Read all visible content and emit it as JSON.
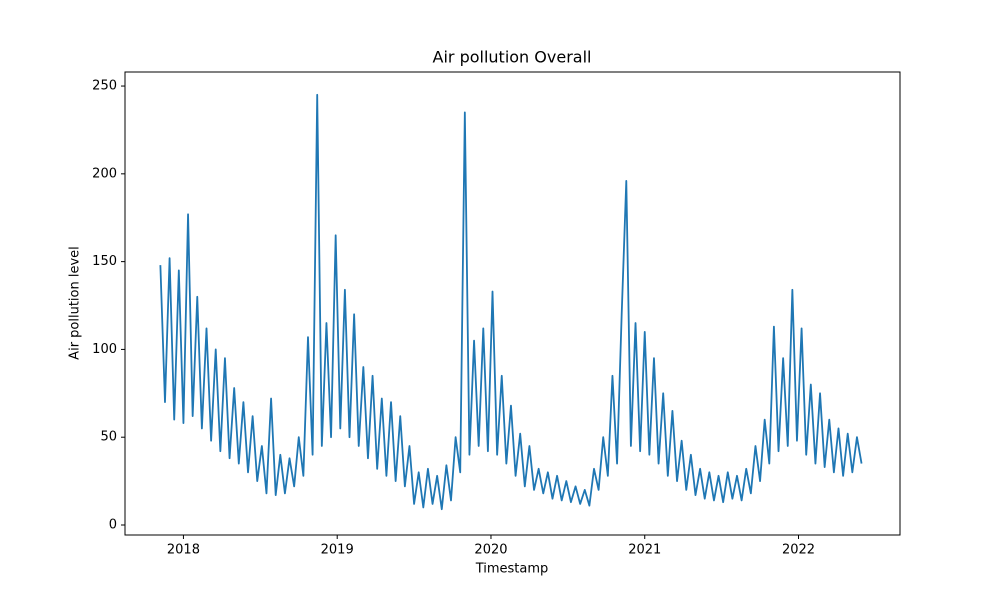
{
  "chart_data": {
    "type": "line",
    "title": "Air pollution Overall",
    "xlabel": "Timestamp",
    "ylabel": "Air pollution level",
    "xlim": [
      2017.62,
      2022.66
    ],
    "xticks": [
      2018,
      2019,
      2020,
      2021,
      2022
    ],
    "ylim": [
      -5.7,
      258
    ],
    "yticks": [
      0,
      50,
      100,
      150,
      200,
      250
    ],
    "series": [
      {
        "color": "#1f77b4",
        "x": [
          2017.85,
          2017.88,
          2017.91,
          2017.94,
          2017.97,
          2018.0,
          2018.03,
          2018.06,
          2018.09,
          2018.12,
          2018.15,
          2018.18,
          2018.21,
          2018.24,
          2018.27,
          2018.3,
          2018.33,
          2018.36,
          2018.39,
          2018.42,
          2018.45,
          2018.48,
          2018.51,
          2018.54,
          2018.57,
          2018.6,
          2018.63,
          2018.66,
          2018.69,
          2018.72,
          2018.75,
          2018.78,
          2018.81,
          2018.84,
          2018.87,
          2018.9,
          2018.93,
          2018.96,
          2018.99,
          2019.02,
          2019.05,
          2019.08,
          2019.11,
          2019.14,
          2019.17,
          2019.2,
          2019.23,
          2019.26,
          2019.29,
          2019.32,
          2019.35,
          2019.38,
          2019.41,
          2019.44,
          2019.47,
          2019.5,
          2019.53,
          2019.56,
          2019.59,
          2019.62,
          2019.65,
          2019.68,
          2019.71,
          2019.74,
          2019.77,
          2019.8,
          2019.83,
          2019.86,
          2019.89,
          2019.92,
          2019.95,
          2019.98,
          2020.01,
          2020.04,
          2020.07,
          2020.1,
          2020.13,
          2020.16,
          2020.19,
          2020.22,
          2020.25,
          2020.28,
          2020.31,
          2020.34,
          2020.37,
          2020.4,
          2020.43,
          2020.46,
          2020.49,
          2020.52,
          2020.55,
          2020.58,
          2020.61,
          2020.64,
          2020.67,
          2020.7,
          2020.73,
          2020.76,
          2020.79,
          2020.82,
          2020.85,
          2020.88,
          2020.91,
          2020.94,
          2020.97,
          2021.0,
          2021.03,
          2021.06,
          2021.09,
          2021.12,
          2021.15,
          2021.18,
          2021.21,
          2021.24,
          2021.27,
          2021.3,
          2021.33,
          2021.36,
          2021.39,
          2021.42,
          2021.45,
          2021.48,
          2021.51,
          2021.54,
          2021.57,
          2021.6,
          2021.63,
          2021.66,
          2021.69,
          2021.72,
          2021.75,
          2021.78,
          2021.81,
          2021.84,
          2021.87,
          2021.9,
          2021.93,
          2021.96,
          2021.99,
          2022.02,
          2022.05,
          2022.08,
          2022.11,
          2022.14,
          2022.17,
          2022.2,
          2022.23,
          2022.26,
          2022.29,
          2022.32,
          2022.35,
          2022.38,
          2022.41
        ],
        "values": [
          148,
          70,
          152,
          60,
          145,
          58,
          177,
          62,
          130,
          55,
          112,
          48,
          100,
          42,
          95,
          38,
          78,
          35,
          70,
          30,
          62,
          25,
          45,
          18,
          72,
          17,
          40,
          18,
          38,
          22,
          50,
          28,
          107,
          40,
          245,
          45,
          115,
          50,
          165,
          55,
          134,
          50,
          120,
          45,
          90,
          38,
          85,
          32,
          72,
          28,
          70,
          25,
          62,
          22,
          45,
          12,
          30,
          10,
          32,
          12,
          28,
          9,
          34,
          14,
          50,
          30,
          235,
          40,
          105,
          45,
          112,
          42,
          133,
          40,
          85,
          35,
          68,
          28,
          52,
          22,
          45,
          20,
          32,
          18,
          30,
          15,
          28,
          14,
          25,
          13,
          22,
          12,
          20,
          11,
          32,
          20,
          50,
          28,
          85,
          35,
          120,
          196,
          45,
          115,
          42,
          110,
          40,
          95,
          35,
          75,
          28,
          65,
          25,
          48,
          20,
          40,
          17,
          32,
          15,
          30,
          14,
          28,
          13,
          30,
          15,
          28,
          14,
          32,
          18,
          45,
          25,
          60,
          35,
          113,
          42,
          95,
          45,
          134,
          48,
          112,
          40,
          80,
          35,
          75,
          33,
          60,
          30,
          55,
          28,
          52,
          30,
          50,
          35
        ]
      }
    ]
  }
}
